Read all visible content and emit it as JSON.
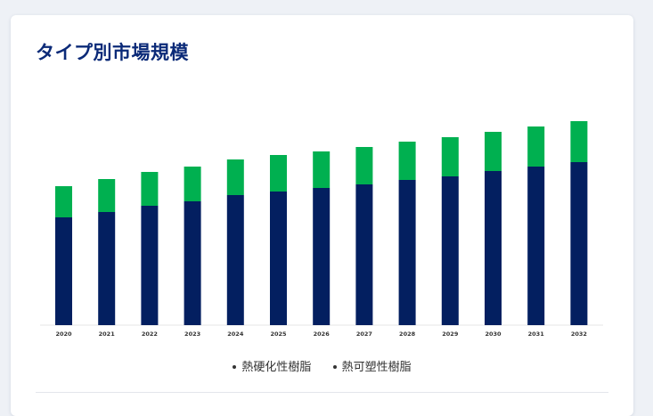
{
  "card": {
    "title": "タイプ別市場規模"
  },
  "colors": {
    "thermoset": "#031f60",
    "thermoplastic": "#00b050",
    "title": "#0b2a78"
  },
  "chart_data": {
    "type": "bar",
    "stacked": true,
    "categories": [
      "2020",
      "2021",
      "2022",
      "2023",
      "2024",
      "2025",
      "2026",
      "2027",
      "2028",
      "2029",
      "2030",
      "2031",
      "2032"
    ],
    "series": [
      {
        "name": "熱硬化性樹脂",
        "color": "#031f60",
        "values": [
          121,
          127,
          134,
          139,
          146,
          150,
          154,
          158,
          163,
          167,
          173,
          178,
          183
        ]
      },
      {
        "name": "熱可塑性樹脂",
        "color": "#00b050",
        "values": [
          35,
          37,
          38,
          39,
          40,
          41,
          41,
          42,
          43,
          44,
          44,
          45,
          46
        ]
      }
    ],
    "y_axis_visible": false,
    "grid": false,
    "legend_position": "bottom"
  }
}
